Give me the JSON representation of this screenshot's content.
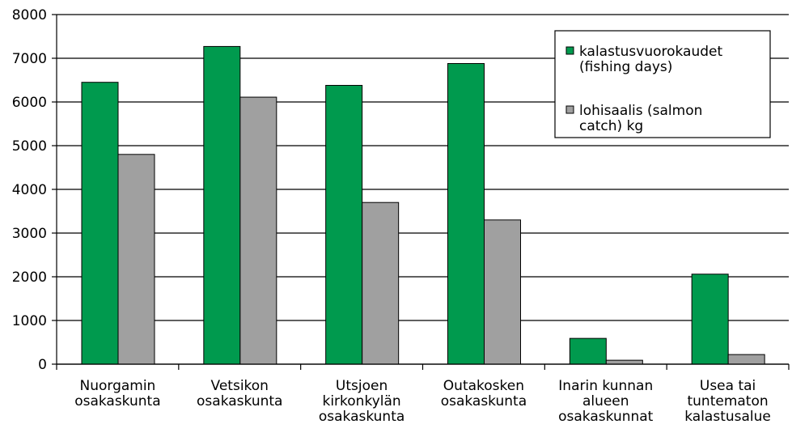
{
  "chart_data": {
    "type": "bar",
    "categories": [
      "Nuorgamin\nosakaskunta",
      "Vetsikon\nosakaskunta",
      "Utsjoen\nkirkonkylän\nosakaskunta",
      "Outakosken\nosakaskunta",
      "Inarin kunnan\nalueen\nosakaskunnat",
      "Usea tai\ntuntematon\nkalastusalue"
    ],
    "series": [
      {
        "name": "kalastusvuorokaudet\n(fishing days)",
        "color": "#009a4e",
        "values": [
          6450,
          7270,
          6380,
          6880,
          590,
          2060
        ]
      },
      {
        "name": "lohisaalis (salmon\ncatch) kg",
        "color": "#a0a0a0",
        "values": [
          4800,
          6110,
          3700,
          3300,
          90,
          220
        ]
      }
    ],
    "ylim": [
      0,
      8000
    ],
    "yticks": [
      0,
      1000,
      2000,
      3000,
      4000,
      5000,
      6000,
      7000,
      8000
    ],
    "grid": true,
    "legend": "upper right"
  }
}
